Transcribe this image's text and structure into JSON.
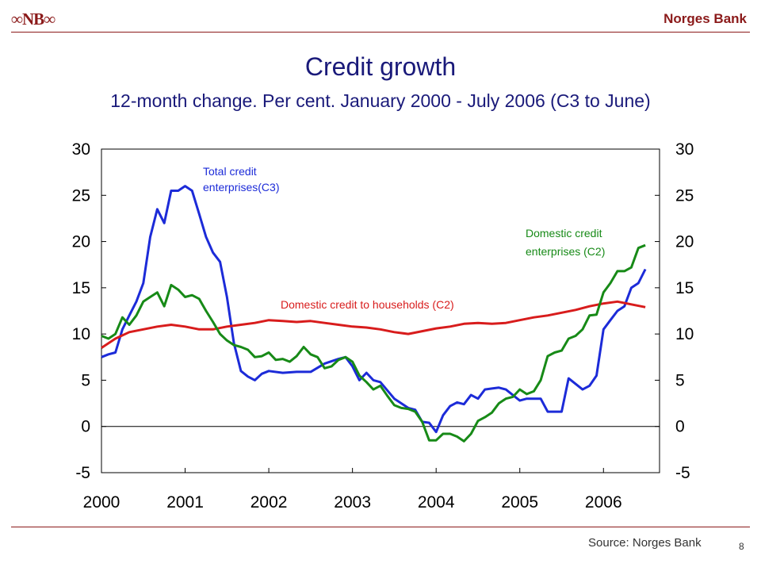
{
  "header": {
    "logo_text": "∞NB∞",
    "brand": "Norges Bank"
  },
  "title": "Credit growth",
  "subtitle": "12-month change. Per cent. January 2000 - July 2006 (C3 to June)",
  "footer": {
    "source": "Source: Norges Bank",
    "page_number": "8"
  },
  "colors": {
    "c3": "#1c2bd8",
    "households": "#d81c1c",
    "domestic_c2": "#178a17",
    "brand": "#8b1a1a",
    "title": "#1a1a7a"
  },
  "chart_data": {
    "type": "line",
    "title": "Credit growth",
    "subtitle": "12-month change. Per cent. January 2000 - July 2006 (C3 to June)",
    "x_tick_labels": [
      "2000",
      "2001",
      "2002",
      "2003",
      "2004",
      "2005",
      "2006"
    ],
    "y_ticks": [
      30,
      25,
      20,
      15,
      10,
      5,
      0,
      -5
    ],
    "y_tick_labels": [
      "30",
      "25",
      "20",
      "15",
      "10",
      "5",
      "0",
      "-5"
    ],
    "ylim": [
      -5,
      30
    ],
    "xlim": [
      2000.0,
      2006.67
    ],
    "grid": false,
    "zero_line": true,
    "series": [
      {
        "name": "Total credit enterprises(C3)",
        "label_lines": [
          "Total credit",
          "enterprises(C3)"
        ],
        "color": "#1c2bd8",
        "x": [
          2000.0,
          2000.083,
          2000.167,
          2000.25,
          2000.333,
          2000.417,
          2000.5,
          2000.583,
          2000.667,
          2000.75,
          2000.833,
          2000.917,
          2001.0,
          2001.083,
          2001.167,
          2001.25,
          2001.333,
          2001.417,
          2001.5,
          2001.583,
          2001.667,
          2001.75,
          2001.833,
          2001.917,
          2002.0,
          2002.167,
          2002.333,
          2002.5,
          2002.667,
          2002.833,
          2002.917,
          2003.0,
          2003.083,
          2003.167,
          2003.25,
          2003.333,
          2003.5,
          2003.667,
          2003.75,
          2003.833,
          2003.917,
          2004.0,
          2004.083,
          2004.167,
          2004.25,
          2004.333,
          2004.417,
          2004.5,
          2004.583,
          2004.667,
          2004.75,
          2004.833,
          2005.0,
          2005.083,
          2005.25,
          2005.333,
          2005.5,
          2005.583,
          2005.75,
          2005.833,
          2005.917,
          2006.0,
          2006.083,
          2006.167,
          2006.25,
          2006.333,
          2006.417,
          2006.5
        ],
        "y": [
          7.5,
          7.8,
          8.0,
          10.5,
          12.0,
          13.5,
          15.5,
          20.5,
          23.5,
          22.0,
          25.5,
          25.5,
          26.0,
          25.5,
          23.0,
          20.5,
          18.8,
          17.8,
          14.0,
          9.0,
          6.0,
          5.4,
          5.0,
          5.7,
          6.0,
          5.8,
          5.9,
          5.9,
          6.8,
          7.3,
          7.5,
          6.5,
          5.0,
          5.8,
          5.0,
          4.8,
          3.0,
          2.0,
          1.8,
          0.5,
          0.4,
          -0.6,
          1.2,
          2.2,
          2.6,
          2.4,
          3.4,
          3.0,
          4.0,
          4.1,
          4.2,
          4.0,
          2.8,
          3.0,
          3.0,
          1.6,
          1.6,
          5.2,
          4.0,
          4.4,
          5.5,
          10.5,
          11.5,
          12.5,
          13.0,
          15.0,
          15.5,
          17.0
        ]
      },
      {
        "name": "Domestic credit to households (C2)",
        "label_lines": [
          "Domestic credit to households (C2)"
        ],
        "color": "#d81c1c",
        "x": [
          2000.0,
          2000.167,
          2000.333,
          2000.5,
          2000.667,
          2000.833,
          2001.0,
          2001.167,
          2001.333,
          2001.5,
          2001.667,
          2001.833,
          2002.0,
          2002.167,
          2002.333,
          2002.5,
          2002.667,
          2002.833,
          2003.0,
          2003.167,
          2003.333,
          2003.5,
          2003.667,
          2003.833,
          2004.0,
          2004.167,
          2004.333,
          2004.5,
          2004.667,
          2004.833,
          2005.0,
          2005.167,
          2005.333,
          2005.5,
          2005.667,
          2005.833,
          2006.0,
          2006.167,
          2006.333,
          2006.5
        ],
        "y": [
          8.5,
          9.5,
          10.2,
          10.5,
          10.8,
          11.0,
          10.8,
          10.5,
          10.5,
          10.8,
          11.0,
          11.2,
          11.5,
          11.4,
          11.3,
          11.4,
          11.2,
          11.0,
          10.8,
          10.7,
          10.5,
          10.2,
          10.0,
          10.3,
          10.6,
          10.8,
          11.1,
          11.2,
          11.1,
          11.2,
          11.5,
          11.8,
          12.0,
          12.3,
          12.6,
          13.0,
          13.3,
          13.5,
          13.2,
          12.9
        ]
      },
      {
        "name": "Domestic credit enterprises (C2)",
        "label_lines": [
          "Domestic credit",
          "enterprises (C2)"
        ],
        "color": "#178a17",
        "x": [
          2000.0,
          2000.083,
          2000.167,
          2000.25,
          2000.333,
          2000.417,
          2000.5,
          2000.583,
          2000.667,
          2000.75,
          2000.833,
          2000.917,
          2001.0,
          2001.083,
          2001.167,
          2001.25,
          2001.333,
          2001.417,
          2001.5,
          2001.583,
          2001.667,
          2001.75,
          2001.833,
          2001.917,
          2002.0,
          2002.083,
          2002.167,
          2002.25,
          2002.333,
          2002.417,
          2002.5,
          2002.583,
          2002.667,
          2002.75,
          2002.833,
          2002.917,
          2003.0,
          2003.083,
          2003.167,
          2003.25,
          2003.333,
          2003.417,
          2003.5,
          2003.583,
          2003.667,
          2003.75,
          2003.833,
          2003.917,
          2004.0,
          2004.083,
          2004.167,
          2004.25,
          2004.333,
          2004.417,
          2004.5,
          2004.583,
          2004.667,
          2004.75,
          2004.833,
          2004.917,
          2005.0,
          2005.083,
          2005.167,
          2005.25,
          2005.333,
          2005.417,
          2005.5,
          2005.583,
          2005.667,
          2005.75,
          2005.833,
          2005.917,
          2006.0,
          2006.083,
          2006.167,
          2006.25,
          2006.333,
          2006.417,
          2006.5
        ],
        "y": [
          9.8,
          9.5,
          10.0,
          11.8,
          11.0,
          12.0,
          13.5,
          14.0,
          14.5,
          13.0,
          15.3,
          14.8,
          14.0,
          14.2,
          13.8,
          12.5,
          11.3,
          10.0,
          9.3,
          8.8,
          8.6,
          8.3,
          7.5,
          7.6,
          8.0,
          7.2,
          7.3,
          7.0,
          7.6,
          8.6,
          7.8,
          7.5,
          6.3,
          6.5,
          7.2,
          7.5,
          7.0,
          5.5,
          4.8,
          4.0,
          4.4,
          3.3,
          2.3,
          2.0,
          1.9,
          1.6,
          0.5,
          -1.5,
          -1.5,
          -0.8,
          -0.8,
          -1.1,
          -1.6,
          -0.8,
          0.6,
          1.0,
          1.5,
          2.5,
          3.0,
          3.2,
          4.0,
          3.5,
          3.8,
          5.0,
          7.6,
          8.0,
          8.2,
          9.5,
          9.8,
          10.5,
          12.0,
          12.1,
          14.5,
          15.5,
          16.8,
          16.8,
          17.2,
          19.3,
          19.6
        ]
      }
    ]
  }
}
